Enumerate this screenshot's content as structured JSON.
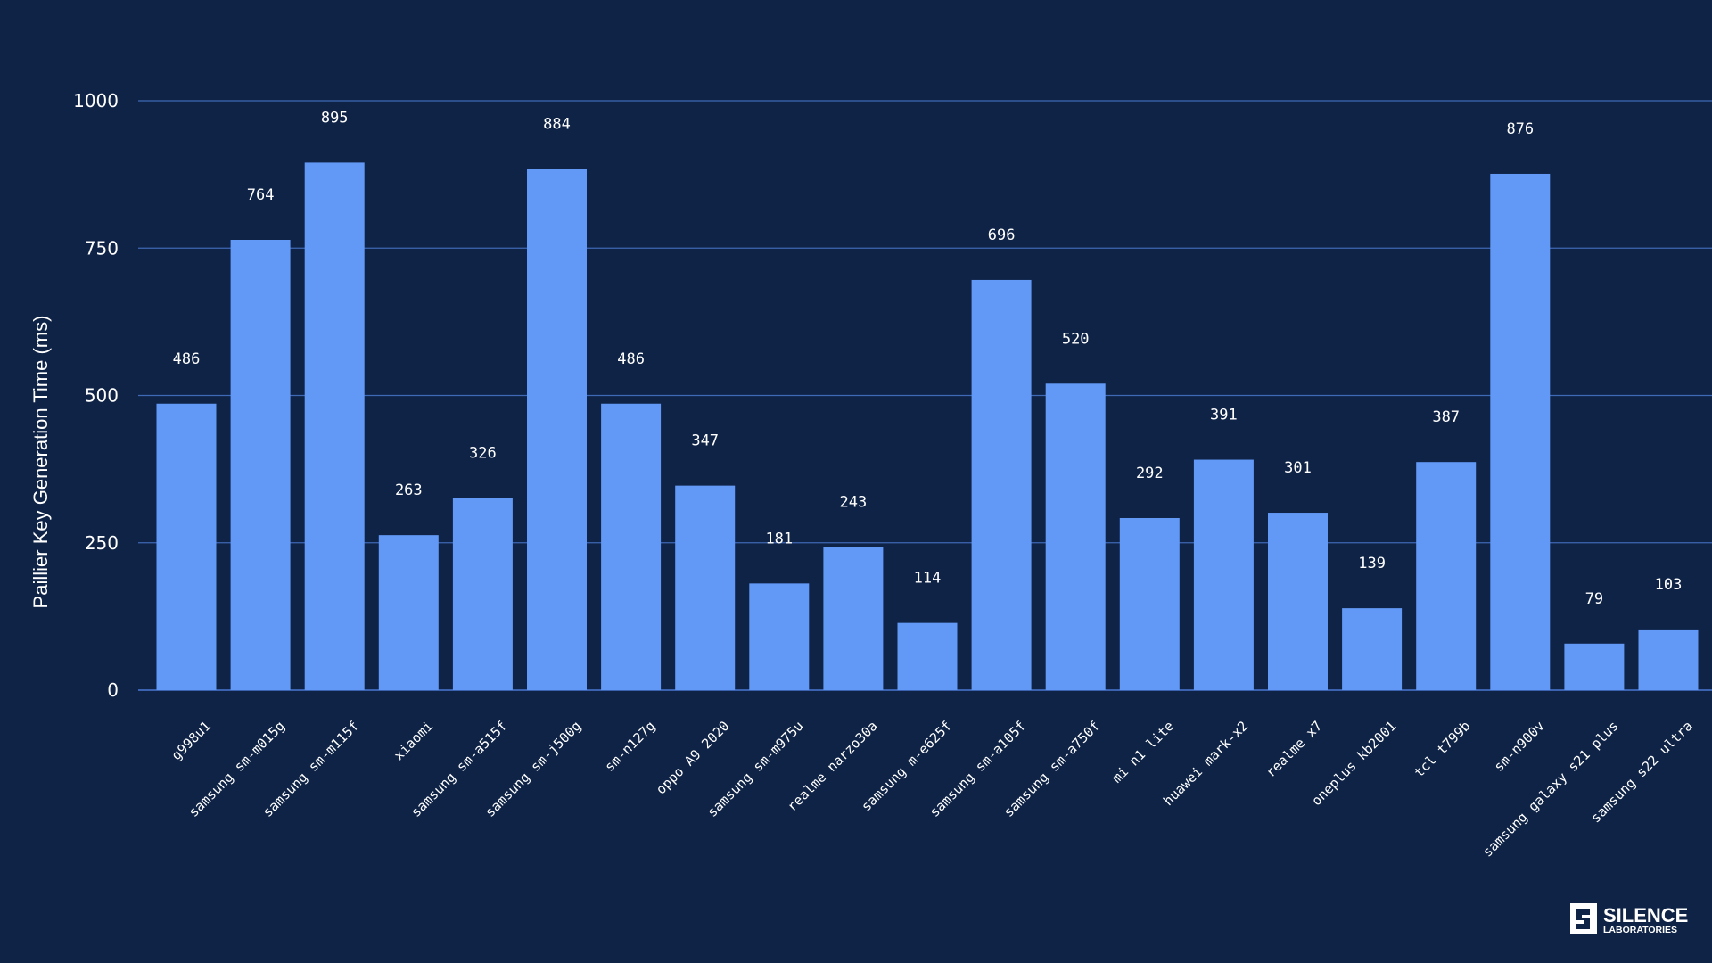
{
  "chart_data": {
    "type": "bar",
    "title": "",
    "xlabel": "",
    "ylabel": "Paillier Key Generation Time (ms)",
    "ylim": [
      0,
      1000
    ],
    "yticks": [
      0,
      250,
      500,
      750,
      1000
    ],
    "grid": true,
    "categories": [
      "g998u1",
      "samsung sm-m015g",
      "samsung sm-m115f",
      "xiaomi",
      "samsung sm-a515f",
      "samsung sm-j500g",
      "sm-n127g",
      "oppo A9 2020",
      "samsung sm-m975u",
      "realme narzo30a",
      "samsung m-e625f",
      "samsung sm-a105f",
      "samsung sm-a750f",
      "mi n1 lite",
      "huawei mark-x2",
      "realme x7",
      "oneplus kb2001",
      "tcl t799b",
      "sm-n900v",
      "samsung galaxy s21 plus",
      "samsung s22 ultra"
    ],
    "values": [
      486,
      764,
      895,
      263,
      326,
      884,
      486,
      347,
      181,
      243,
      114,
      696,
      520,
      292,
      391,
      301,
      139,
      387,
      876,
      79,
      103
    ],
    "colors": {
      "background": "#0f2346",
      "bar": "#6299f6",
      "grid": "#3f68b5",
      "text": "#ffffff"
    }
  },
  "logo": {
    "name": "SILENCE",
    "sub": "LABORATORIES",
    "icon": "silence-laboratories-logo-icon"
  }
}
